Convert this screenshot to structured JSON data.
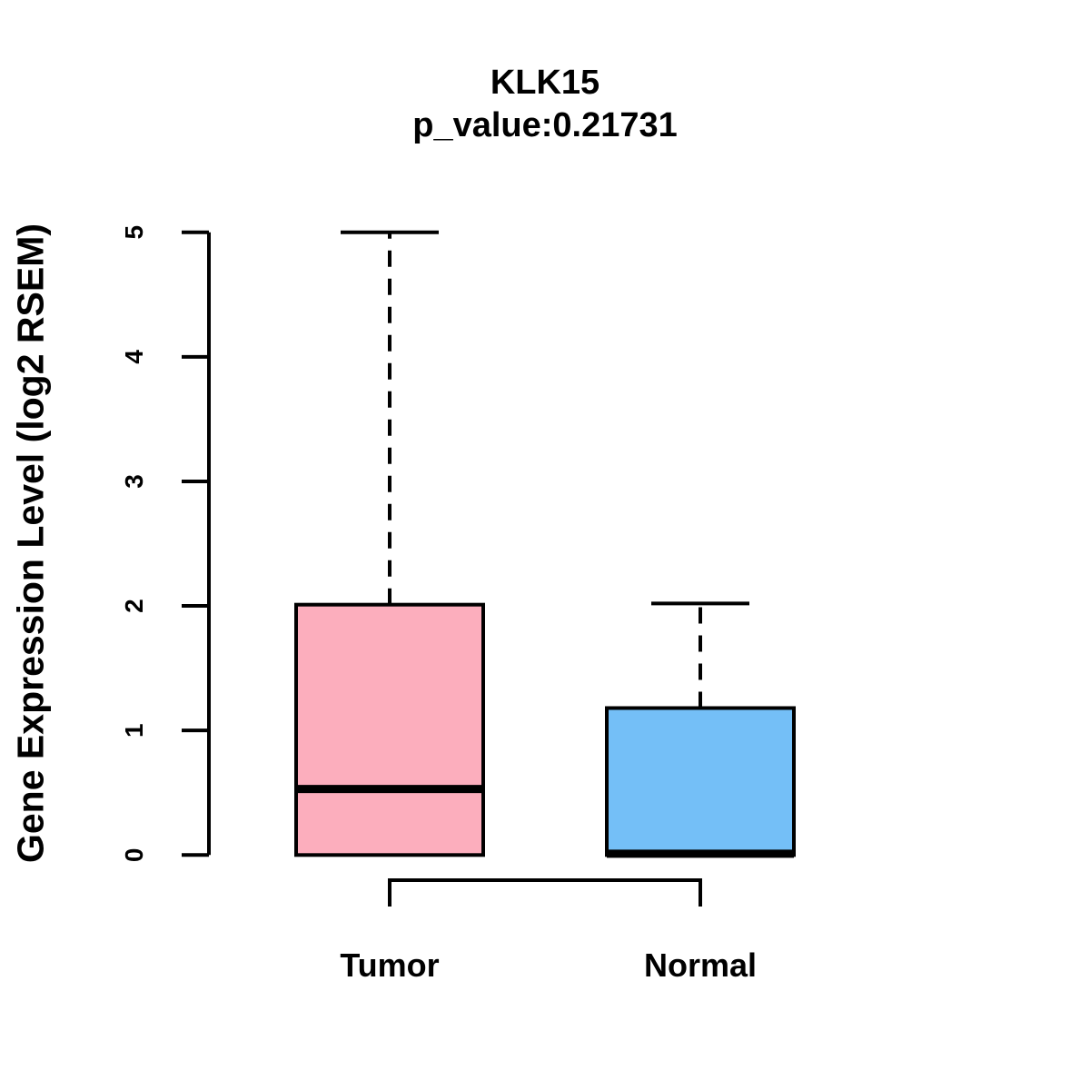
{
  "header": {
    "title": "KLK15",
    "subtitle": "p_value:0.21731"
  },
  "chart_data": {
    "type": "boxplot",
    "title": "KLK15",
    "subtitle": "p_value:0.21731",
    "xlabel": "",
    "ylabel": "Gene Expression Level (log2 RSEM)",
    "ylim": [
      0,
      5
    ],
    "yticks": [
      "0",
      "1",
      "2",
      "3",
      "4",
      "5"
    ],
    "grid": false,
    "legend": "none",
    "categories": [
      "Tumor",
      "Normal"
    ],
    "groups": [
      {
        "name": "Tumor",
        "fill": "#FCAEBD",
        "stroke": "#000000",
        "q1": 0.0,
        "median": 0.53,
        "q3": 2.01,
        "whisker_low": 0.0,
        "whisker_high": 5.0
      },
      {
        "name": "Normal",
        "fill": "#74BFF7",
        "stroke": "#000000",
        "q1": 0.0,
        "median": 0.01,
        "q3": 1.18,
        "whisker_low": 0.0,
        "whisker_high": 2.02
      }
    ],
    "comparison_bracket": {
      "from": "Tumor",
      "to": "Normal"
    },
    "colors": {
      "tumor_fill": "#FCAEBD",
      "normal_fill": "#74BFF7",
      "line": "#000000",
      "background": "#FFFFFF"
    }
  }
}
